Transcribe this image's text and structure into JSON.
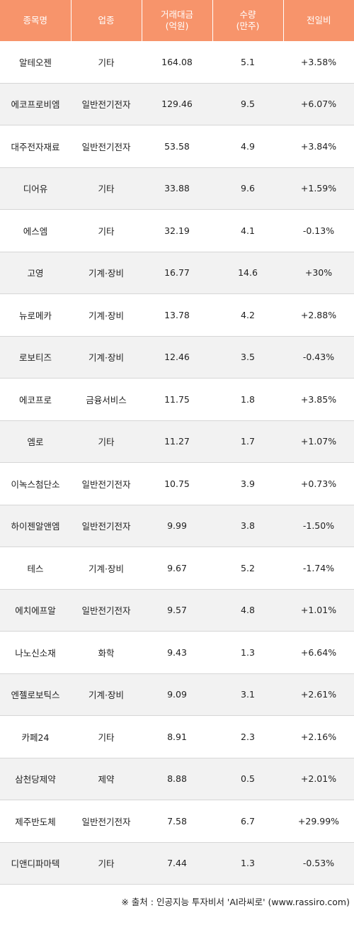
{
  "headers": {
    "name": "종목명",
    "sector": "업종",
    "value_line1": "거래대금",
    "value_line2": "(억원)",
    "volume_line1": "수량",
    "volume_line2": "(만주)",
    "change": "전일비"
  },
  "rows": [
    {
      "name": "알테오젠",
      "sector": "기타",
      "value": "164.08",
      "volume": "5.1",
      "change": "+3.58%",
      "dir": "up"
    },
    {
      "name": "에코프로비엠",
      "sector": "일반전기전자",
      "value": "129.46",
      "volume": "9.5",
      "change": "+6.07%",
      "dir": "up"
    },
    {
      "name": "대주전자재료",
      "sector": "일반전기전자",
      "value": "53.58",
      "volume": "4.9",
      "change": "+3.84%",
      "dir": "up"
    },
    {
      "name": "디어유",
      "sector": "기타",
      "value": "33.88",
      "volume": "9.6",
      "change": "+1.59%",
      "dir": "up"
    },
    {
      "name": "에스엠",
      "sector": "기타",
      "value": "32.19",
      "volume": "4.1",
      "change": "-0.13%",
      "dir": "down"
    },
    {
      "name": "고영",
      "sector": "기계·장비",
      "value": "16.77",
      "volume": "14.6",
      "change": "+30%",
      "dir": "up"
    },
    {
      "name": "뉴로메카",
      "sector": "기계·장비",
      "value": "13.78",
      "volume": "4.2",
      "change": "+2.88%",
      "dir": "up"
    },
    {
      "name": "로보티즈",
      "sector": "기계·장비",
      "value": "12.46",
      "volume": "3.5",
      "change": "-0.43%",
      "dir": "down"
    },
    {
      "name": "에코프로",
      "sector": "금융서비스",
      "value": "11.75",
      "volume": "1.8",
      "change": "+3.85%",
      "dir": "up"
    },
    {
      "name": "엠로",
      "sector": "기타",
      "value": "11.27",
      "volume": "1.7",
      "change": "+1.07%",
      "dir": "up"
    },
    {
      "name": "이녹스첨단소",
      "sector": "일반전기전자",
      "value": "10.75",
      "volume": "3.9",
      "change": "+0.73%",
      "dir": "up"
    },
    {
      "name": "하이젠알앤엠",
      "sector": "일반전기전자",
      "value": "9.99",
      "volume": "3.8",
      "change": "-1.50%",
      "dir": "down"
    },
    {
      "name": "테스",
      "sector": "기계·장비",
      "value": "9.67",
      "volume": "5.2",
      "change": "-1.74%",
      "dir": "down"
    },
    {
      "name": "에치에프알",
      "sector": "일반전기전자",
      "value": "9.57",
      "volume": "4.8",
      "change": "+1.01%",
      "dir": "up"
    },
    {
      "name": "나노신소재",
      "sector": "화학",
      "value": "9.43",
      "volume": "1.3",
      "change": "+6.64%",
      "dir": "up"
    },
    {
      "name": "엔젤로보틱스",
      "sector": "기계·장비",
      "value": "9.09",
      "volume": "3.1",
      "change": "+2.61%",
      "dir": "up"
    },
    {
      "name": "카페24",
      "sector": "기타",
      "value": "8.91",
      "volume": "2.3",
      "change": "+2.16%",
      "dir": "up"
    },
    {
      "name": "삼천당제약",
      "sector": "제약",
      "value": "8.88",
      "volume": "0.5",
      "change": "+2.01%",
      "dir": "up"
    },
    {
      "name": "제주반도체",
      "sector": "일반전기전자",
      "value": "7.58",
      "volume": "6.7",
      "change": "+29.99%",
      "dir": "up"
    },
    {
      "name": "디앤디파마텍",
      "sector": "기타",
      "value": "7.44",
      "volume": "1.3",
      "change": "-0.53%",
      "dir": "down"
    }
  ],
  "source_note": "※ 출처 : 인공지능 투자비서 'AI라씨로' (www.rassiro.com)",
  "colors": {
    "header_bg": "#f7946b",
    "header_text": "#ffffff",
    "up": "#e0121c",
    "down": "#1f2fbf",
    "row_alt": "#f2f2f2"
  }
}
